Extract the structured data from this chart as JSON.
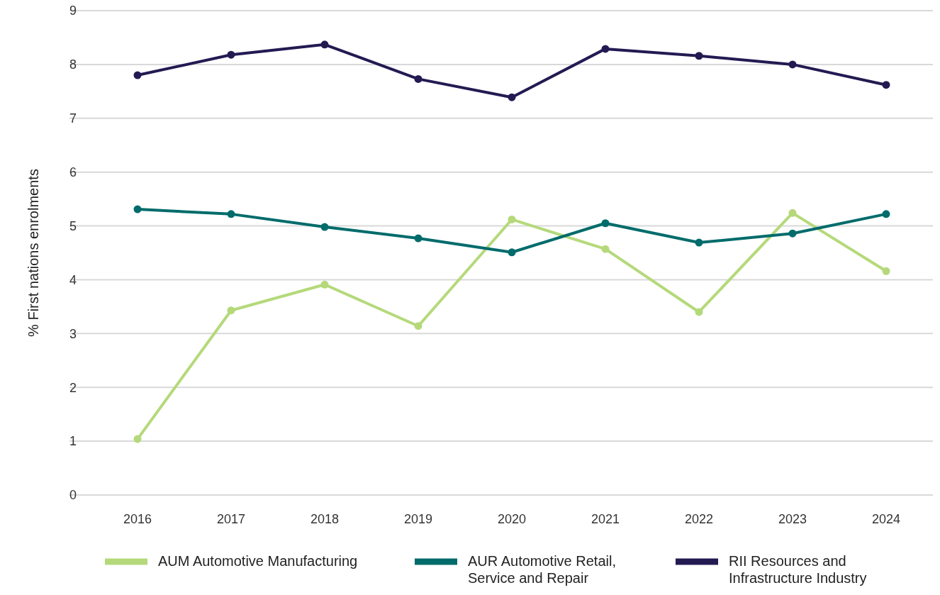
{
  "chart_data": {
    "type": "line",
    "ylabel": "% First nations enrolments",
    "categories": [
      "2016",
      "2017",
      "2018",
      "2019",
      "2020",
      "2021",
      "2022",
      "2023",
      "2024"
    ],
    "series": [
      {
        "name": "AUM Automotive Manufacturing",
        "color": "#b5d97a",
        "values": [
          1.04,
          3.43,
          3.91,
          3.14,
          5.12,
          4.57,
          3.4,
          5.24,
          4.16
        ]
      },
      {
        "name": "AUR Automotive Retail, Service and Repair",
        "color": "#006b6b",
        "values": [
          5.31,
          5.22,
          4.98,
          4.77,
          4.51,
          5.05,
          4.69,
          4.86,
          5.22
        ]
      },
      {
        "name": "RII Resources and Infrastructure Industry",
        "color": "#241a52",
        "values": [
          7.8,
          8.18,
          8.37,
          7.73,
          7.39,
          8.29,
          8.16,
          8,
          7.62
        ]
      }
    ],
    "ylim": [
      0,
      9
    ],
    "yticks": [
      0,
      1,
      2,
      3,
      4,
      5,
      6,
      7,
      8,
      9
    ],
    "grid": "y",
    "legend": "bottom",
    "marker": "circle",
    "line_style": "solid"
  }
}
